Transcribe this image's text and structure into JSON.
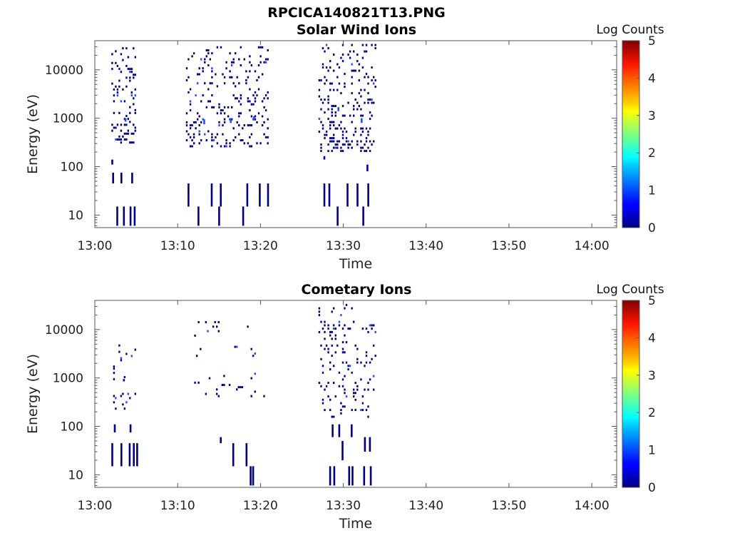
{
  "figure_title": "RPCICA140821T13.PNG",
  "colors": {
    "spike": "#00007f",
    "bright": "#1f4fff",
    "axes": "#555555"
  },
  "colormap": "jet",
  "chart_data": [
    {
      "type": "heatmap",
      "title": "Solar Wind Ions",
      "xlabel": "Time",
      "ylabel": "Energy (eV)",
      "yscale": "log",
      "xlim": [
        "13:00",
        "14:03"
      ],
      "ylim": [
        5.5,
        40000
      ],
      "x_ticks": [
        "13:00",
        "13:10",
        "13:20",
        "13:30",
        "13:40",
        "13:50",
        "14:00"
      ],
      "y_ticks": [
        "10",
        "100",
        "1000",
        "10000"
      ],
      "colorbar": {
        "label": "Log Counts",
        "ticks": [
          "0",
          "1",
          "2",
          "3",
          "4",
          "5"
        ],
        "range": [
          0,
          5
        ]
      },
      "bursts": [
        {
          "start": "13:02",
          "end": "13:05",
          "ylo": 300,
          "yhi": 35000,
          "density": 0.55
        },
        {
          "start": "13:11",
          "end": "13:21",
          "ylo": 250,
          "yhi": 32000,
          "density": 0.45
        },
        {
          "start": "13:27",
          "end": "13:34",
          "ylo": 200,
          "yhi": 36000,
          "density": 0.65
        }
      ],
      "cells": [
        {
          "t": "13:02.6",
          "e_lo": 6,
          "e_hi": 15,
          "log_counts": 0.1
        },
        {
          "t": "13:03.4",
          "e_lo": 6,
          "e_hi": 15,
          "log_counts": 0.1
        },
        {
          "t": "13:04.2",
          "e_lo": 6,
          "e_hi": 15,
          "log_counts": 0.1
        },
        {
          "t": "13:04.7",
          "e_lo": 6,
          "e_hi": 15,
          "log_counts": 0.1
        },
        {
          "t": "13:02.1",
          "e_lo": 45,
          "e_hi": 75,
          "log_counts": 0.1
        },
        {
          "t": "13:03.1",
          "e_lo": 45,
          "e_hi": 75,
          "log_counts": 0.1
        },
        {
          "t": "13:04.4",
          "e_lo": 45,
          "e_hi": 75,
          "log_counts": 0.1
        },
        {
          "t": "13:02.0",
          "e_lo": 110,
          "e_hi": 140,
          "log_counts": 0.1
        },
        {
          "t": "13:03.6",
          "e_lo": 850,
          "e_hi": 1000,
          "log_counts": 0.8
        },
        {
          "t": "13:11.2",
          "e_lo": 15,
          "e_hi": 45,
          "log_counts": 0.1
        },
        {
          "t": "13:12.4",
          "e_lo": 6,
          "e_hi": 15,
          "log_counts": 0.1
        },
        {
          "t": "13:14.0",
          "e_lo": 15,
          "e_hi": 45,
          "log_counts": 0.1
        },
        {
          "t": "13:14.9",
          "e_lo": 6,
          "e_hi": 15,
          "log_counts": 0.1
        },
        {
          "t": "13:15.1",
          "e_lo": 15,
          "e_hi": 45,
          "log_counts": 0.1
        },
        {
          "t": "13:17.8",
          "e_lo": 6,
          "e_hi": 15,
          "log_counts": 0.1
        },
        {
          "t": "13:18.3",
          "e_lo": 15,
          "e_hi": 45,
          "log_counts": 0.1
        },
        {
          "t": "13:19.8",
          "e_lo": 15,
          "e_hi": 45,
          "log_counts": 0.1
        },
        {
          "t": "13:20.8",
          "e_lo": 15,
          "e_hi": 45,
          "log_counts": 0.1
        },
        {
          "t": "13:13.1",
          "e_lo": 750,
          "e_hi": 950,
          "log_counts": 1.0
        },
        {
          "t": "13:16.3",
          "e_lo": 800,
          "e_hi": 1000,
          "log_counts": 0.8
        },
        {
          "t": "13:19.1",
          "e_lo": 900,
          "e_hi": 1100,
          "log_counts": 0.9
        },
        {
          "t": "13:27.6",
          "e_lo": 15,
          "e_hi": 45,
          "log_counts": 0.1
        },
        {
          "t": "13:28.2",
          "e_lo": 15,
          "e_hi": 45,
          "log_counts": 0.1
        },
        {
          "t": "13:29.2",
          "e_lo": 6,
          "e_hi": 15,
          "log_counts": 0.1
        },
        {
          "t": "13:30.4",
          "e_lo": 15,
          "e_hi": 45,
          "log_counts": 0.1
        },
        {
          "t": "13:31.6",
          "e_lo": 15,
          "e_hi": 45,
          "log_counts": 0.1
        },
        {
          "t": "13:32.3",
          "e_lo": 6,
          "e_hi": 15,
          "log_counts": 0.1
        },
        {
          "t": "13:32.9",
          "e_lo": 15,
          "e_hi": 45,
          "log_counts": 0.1
        },
        {
          "t": "13:27.6",
          "e_lo": 140,
          "e_hi": 165,
          "log_counts": 0.3
        },
        {
          "t": "13:32.8",
          "e_lo": 80,
          "e_hi": 110,
          "log_counts": 0.3
        },
        {
          "t": "13:32.1",
          "e_lo": 800,
          "e_hi": 1000,
          "log_counts": 0.9
        },
        {
          "t": "13:29.3",
          "e_lo": 1400,
          "e_hi": 1700,
          "log_counts": 0.8
        }
      ]
    },
    {
      "type": "heatmap",
      "title": "Cometary Ions",
      "xlabel": "Time",
      "ylabel": "Energy (eV)",
      "yscale": "log",
      "xlim": [
        "13:00",
        "14:03"
      ],
      "ylim": [
        5.5,
        40000
      ],
      "x_ticks": [
        "13:00",
        "13:10",
        "13:20",
        "13:30",
        "13:40",
        "13:50",
        "14:00"
      ],
      "y_ticks": [
        "10",
        "100",
        "1000",
        "10000"
      ],
      "colorbar": {
        "label": "Log Counts",
        "ticks": [
          "0",
          "1",
          "2",
          "3",
          "4",
          "5"
        ],
        "range": [
          0,
          5
        ]
      },
      "bursts": [
        {
          "start": "13:02",
          "end": "13:05",
          "ylo": 200,
          "yhi": 6000,
          "density": 0.18
        },
        {
          "start": "13:12",
          "end": "13:21",
          "ylo": 400,
          "yhi": 15000,
          "density": 0.09
        },
        {
          "start": "13:27",
          "end": "13:34",
          "ylo": 150,
          "yhi": 36000,
          "density": 0.45
        }
      ],
      "cells": [
        {
          "t": "13:02.0",
          "e_lo": 15,
          "e_hi": 45,
          "log_counts": 0.1
        },
        {
          "t": "13:03.1",
          "e_lo": 15,
          "e_hi": 45,
          "log_counts": 0.1
        },
        {
          "t": "13:04.1",
          "e_lo": 15,
          "e_hi": 45,
          "log_counts": 0.1
        },
        {
          "t": "13:04.6",
          "e_lo": 15,
          "e_hi": 45,
          "log_counts": 0.1
        },
        {
          "t": "13:05.0",
          "e_lo": 15,
          "e_hi": 45,
          "log_counts": 0.1
        },
        {
          "t": "13:02.3",
          "e_lo": 75,
          "e_hi": 110,
          "log_counts": 0.1
        },
        {
          "t": "13:04.2",
          "e_lo": 75,
          "e_hi": 110,
          "log_counts": 0.1
        },
        {
          "t": "13:03.4",
          "e_lo": 850,
          "e_hi": 950,
          "log_counts": 0.4
        },
        {
          "t": "13:15.1",
          "e_lo": 45,
          "e_hi": 60,
          "log_counts": 0.1
        },
        {
          "t": "13:16.6",
          "e_lo": 15,
          "e_hi": 45,
          "log_counts": 0.1
        },
        {
          "t": "13:18.2",
          "e_lo": 15,
          "e_hi": 45,
          "log_counts": 0.1
        },
        {
          "t": "13:18.7",
          "e_lo": 6,
          "e_hi": 15,
          "log_counts": 0.1
        },
        {
          "t": "13:19.0",
          "e_lo": 6,
          "e_hi": 15,
          "log_counts": 0.1
        },
        {
          "t": "13:28.3",
          "e_lo": 6,
          "e_hi": 15,
          "log_counts": 0.1
        },
        {
          "t": "13:28.8",
          "e_lo": 6,
          "e_hi": 15,
          "log_counts": 0.1
        },
        {
          "t": "13:30.6",
          "e_lo": 6,
          "e_hi": 15,
          "log_counts": 0.1
        },
        {
          "t": "13:31.0",
          "e_lo": 6,
          "e_hi": 15,
          "log_counts": 0.1
        },
        {
          "t": "13:32.4",
          "e_lo": 6,
          "e_hi": 15,
          "log_counts": 0.1
        },
        {
          "t": "13:33.2",
          "e_lo": 6,
          "e_hi": 15,
          "log_counts": 0.1
        },
        {
          "t": "13:28.6",
          "e_lo": 60,
          "e_hi": 110,
          "log_counts": 0.1
        },
        {
          "t": "13:29.4",
          "e_lo": 60,
          "e_hi": 110,
          "log_counts": 0.1
        },
        {
          "t": "13:30.9",
          "e_lo": 60,
          "e_hi": 110,
          "log_counts": 0.1
        },
        {
          "t": "13:32.5",
          "e_lo": 30,
          "e_hi": 60,
          "log_counts": 0.1
        },
        {
          "t": "13:33.1",
          "e_lo": 30,
          "e_hi": 60,
          "log_counts": 0.1
        },
        {
          "t": "13:29.8",
          "e_lo": 20,
          "e_hi": 50,
          "log_counts": 0.1
        }
      ]
    }
  ]
}
